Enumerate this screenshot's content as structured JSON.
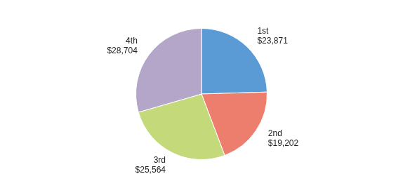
{
  "chart_data": {
    "type": "pie",
    "categories": [
      "1st",
      "2nd",
      "3rd",
      "4th"
    ],
    "values": [
      23871,
      19202,
      25564,
      28704
    ],
    "value_labels": [
      "$23,871",
      "$19,202",
      "$25,564",
      "$28,704"
    ],
    "colors": [
      "#5B9BD5",
      "#ED7D6C",
      "#C4D979",
      "#B3A6C9"
    ],
    "data_labels": true
  }
}
